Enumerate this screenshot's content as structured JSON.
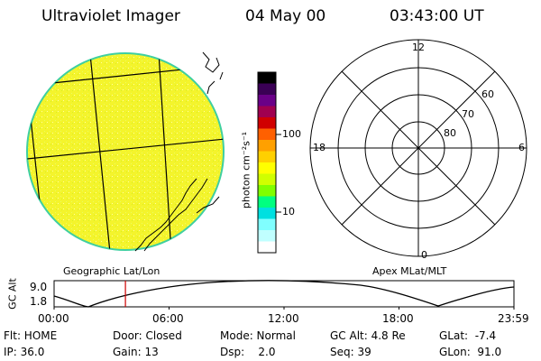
{
  "header": {
    "instrument": "Ultraviolet Imager",
    "date": "04 May 00",
    "time": "03:43:00 UT"
  },
  "colorbar": {
    "unit_label": "photon cm⁻²s⁻¹",
    "ticks": [
      "100",
      "10"
    ],
    "colors": [
      "#000000",
      "#3a0055",
      "#6a0088",
      "#a00050",
      "#d00000",
      "#ff6000",
      "#ffa000",
      "#ffd000",
      "#ffff00",
      "#d0ff00",
      "#80ff00",
      "#00ff80",
      "#00e0e0",
      "#80ffff",
      "#c0ffff",
      "#ffffff"
    ]
  },
  "polar": {
    "mlt_labels": {
      "top": "12",
      "left": "18",
      "right": "6",
      "bottom": "0"
    },
    "lat_labels": [
      "60",
      "70",
      "80"
    ]
  },
  "image_caption_left": "Geographic Lat/Lon",
  "image_caption_right": "Apex MLat/MLT",
  "alt_plot": {
    "ylabel": "GC Alt",
    "ymax": "9.0",
    "ymin": "1.8",
    "xticks": [
      "00:00",
      "06:00",
      "12:00",
      "18:00",
      "23:59"
    ],
    "current_time_hours": 3.72
  },
  "info": [
    [
      "Flt: HOME",
      "Door: Closed",
      "Mode: Normal",
      "GC Alt: 4.8 Re",
      "GLat:  -7.4"
    ],
    [
      "IP: 36.0",
      "Gain: 13",
      "Dsp:    2.0",
      "Seq: 39",
      "GLon:  91.0"
    ]
  ],
  "colors": {
    "disk": "#f2f22a",
    "disk_edge": "#3fcfa0",
    "cursor": "#cc0000"
  }
}
